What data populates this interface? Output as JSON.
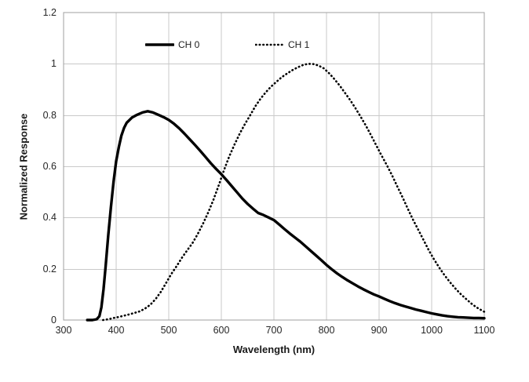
{
  "colors": {
    "series": "#000000",
    "grid": "#c9c9c9",
    "plot_border": "#9f9f9f",
    "text": "#262626",
    "background": "#ffffff"
  },
  "chart_data": {
    "type": "line",
    "title": "",
    "xlabel": "Wavelength (nm)",
    "ylabel": "Normalized Response",
    "xlim": [
      300,
      1100
    ],
    "ylim": [
      0,
      1.2
    ],
    "x_tick_step": 100,
    "y_tick_step": 0.2,
    "x_tick_labels": [
      "300",
      "400",
      "500",
      "600",
      "700",
      "800",
      "900",
      "1000",
      "1100"
    ],
    "y_tick_labels": [
      "0",
      "0.2",
      "0.4",
      "0.6",
      "0.8",
      "1",
      "1.2"
    ],
    "grid": true,
    "legend_position": "top-inside",
    "series": [
      {
        "name": "CH 0",
        "line_style": "solid",
        "color": "#000000",
        "points": [
          [
            345,
            0
          ],
          [
            355,
            0
          ],
          [
            363,
            0.003
          ],
          [
            368,
            0.015
          ],
          [
            372,
            0.05
          ],
          [
            376,
            0.12
          ],
          [
            380,
            0.21
          ],
          [
            385,
            0.33
          ],
          [
            390,
            0.44
          ],
          [
            395,
            0.54
          ],
          [
            400,
            0.62
          ],
          [
            405,
            0.675
          ],
          [
            410,
            0.72
          ],
          [
            415,
            0.75
          ],
          [
            420,
            0.77
          ],
          [
            430,
            0.79
          ],
          [
            440,
            0.801
          ],
          [
            450,
            0.81
          ],
          [
            460,
            0.815
          ],
          [
            470,
            0.81
          ],
          [
            480,
            0.801
          ],
          [
            490,
            0.792
          ],
          [
            500,
            0.781
          ],
          [
            510,
            0.766
          ],
          [
            520,
            0.748
          ],
          [
            530,
            0.727
          ],
          [
            540,
            0.705
          ],
          [
            550,
            0.683
          ],
          [
            560,
            0.66
          ],
          [
            570,
            0.636
          ],
          [
            580,
            0.612
          ],
          [
            590,
            0.59
          ],
          [
            600,
            0.569
          ],
          [
            610,
            0.546
          ],
          [
            620,
            0.522
          ],
          [
            630,
            0.498
          ],
          [
            640,
            0.474
          ],
          [
            650,
            0.453
          ],
          [
            660,
            0.435
          ],
          [
            670,
            0.418
          ],
          [
            680,
            0.41
          ],
          [
            690,
            0.4
          ],
          [
            700,
            0.39
          ],
          [
            710,
            0.373
          ],
          [
            720,
            0.355
          ],
          [
            730,
            0.338
          ],
          [
            740,
            0.322
          ],
          [
            750,
            0.306
          ],
          [
            760,
            0.288
          ],
          [
            770,
            0.27
          ],
          [
            780,
            0.252
          ],
          [
            790,
            0.234
          ],
          [
            800,
            0.215
          ],
          [
            810,
            0.198
          ],
          [
            820,
            0.182
          ],
          [
            830,
            0.168
          ],
          [
            840,
            0.155
          ],
          [
            850,
            0.143
          ],
          [
            860,
            0.131
          ],
          [
            870,
            0.12
          ],
          [
            880,
            0.11
          ],
          [
            890,
            0.1
          ],
          [
            900,
            0.092
          ],
          [
            910,
            0.083
          ],
          [
            920,
            0.074
          ],
          [
            930,
            0.066
          ],
          [
            940,
            0.059
          ],
          [
            950,
            0.053
          ],
          [
            960,
            0.047
          ],
          [
            970,
            0.041
          ],
          [
            980,
            0.036
          ],
          [
            990,
            0.031
          ],
          [
            1000,
            0.026
          ],
          [
            1010,
            0.022
          ],
          [
            1020,
            0.018
          ],
          [
            1030,
            0.015
          ],
          [
            1040,
            0.013
          ],
          [
            1050,
            0.011
          ],
          [
            1060,
            0.01
          ],
          [
            1070,
            0.009
          ],
          [
            1080,
            0.008
          ],
          [
            1090,
            0.008
          ],
          [
            1100,
            0.007
          ]
        ]
      },
      {
        "name": "CH 1",
        "line_style": "dotted",
        "color": "#000000",
        "points": [
          [
            375,
            0
          ],
          [
            385,
            0.003
          ],
          [
            395,
            0.008
          ],
          [
            405,
            0.012
          ],
          [
            415,
            0.017
          ],
          [
            425,
            0.022
          ],
          [
            435,
            0.028
          ],
          [
            445,
            0.034
          ],
          [
            455,
            0.045
          ],
          [
            465,
            0.06
          ],
          [
            475,
            0.082
          ],
          [
            485,
            0.11
          ],
          [
            495,
            0.145
          ],
          [
            505,
            0.18
          ],
          [
            515,
            0.21
          ],
          [
            525,
            0.243
          ],
          [
            535,
            0.272
          ],
          [
            545,
            0.3
          ],
          [
            555,
            0.335
          ],
          [
            565,
            0.375
          ],
          [
            575,
            0.42
          ],
          [
            585,
            0.47
          ],
          [
            595,
            0.525
          ],
          [
            605,
            0.585
          ],
          [
            615,
            0.638
          ],
          [
            625,
            0.685
          ],
          [
            635,
            0.728
          ],
          [
            645,
            0.765
          ],
          [
            655,
            0.8
          ],
          [
            665,
            0.835
          ],
          [
            675,
            0.865
          ],
          [
            685,
            0.89
          ],
          [
            695,
            0.912
          ],
          [
            705,
            0.93
          ],
          [
            715,
            0.948
          ],
          [
            725,
            0.962
          ],
          [
            735,
            0.975
          ],
          [
            745,
            0.986
          ],
          [
            755,
            0.995
          ],
          [
            765,
            1.0
          ],
          [
            775,
            0.999
          ],
          [
            785,
            0.993
          ],
          [
            795,
            0.982
          ],
          [
            805,
            0.963
          ],
          [
            815,
            0.94
          ],
          [
            825,
            0.915
          ],
          [
            835,
            0.887
          ],
          [
            845,
            0.858
          ],
          [
            855,
            0.827
          ],
          [
            865,
            0.793
          ],
          [
            875,
            0.758
          ],
          [
            885,
            0.72
          ],
          [
            895,
            0.68
          ],
          [
            905,
            0.641
          ],
          [
            915,
            0.603
          ],
          [
            925,
            0.563
          ],
          [
            935,
            0.52
          ],
          [
            945,
            0.477
          ],
          [
            955,
            0.433
          ],
          [
            965,
            0.39
          ],
          [
            975,
            0.35
          ],
          [
            985,
            0.31
          ],
          [
            995,
            0.27
          ],
          [
            1005,
            0.235
          ],
          [
            1015,
            0.203
          ],
          [
            1025,
            0.173
          ],
          [
            1035,
            0.147
          ],
          [
            1045,
            0.123
          ],
          [
            1055,
            0.102
          ],
          [
            1065,
            0.083
          ],
          [
            1075,
            0.065
          ],
          [
            1085,
            0.05
          ],
          [
            1095,
            0.038
          ],
          [
            1100,
            0.032
          ]
        ]
      }
    ]
  }
}
